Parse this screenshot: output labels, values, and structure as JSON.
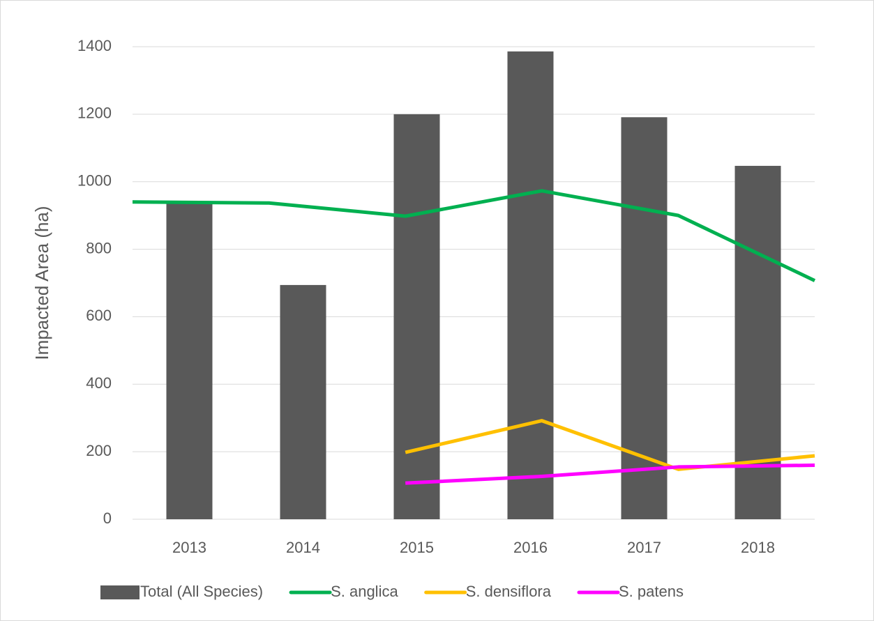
{
  "chart_data": {
    "type": "bar",
    "y_label": "Impacted Area (ha)",
    "categories": [
      "2013",
      "2014",
      "2015",
      "2016",
      "2017",
      "2018"
    ],
    "ylim": [
      0,
      1400
    ],
    "yticks": [
      0,
      200,
      400,
      600,
      800,
      1000,
      1200,
      1400
    ],
    "grid": true,
    "legend": "bottom",
    "series": [
      {
        "name": "Total (All Species)",
        "type": "bar",
        "color": "#595959",
        "values": [
          937,
          694,
          1200,
          1386,
          1191,
          1047
        ]
      },
      {
        "name": "S. anglica",
        "type": "line",
        "color": "#00b050",
        "values": [
          940,
          937,
          898,
          973,
          900,
          707
        ]
      },
      {
        "name": "S. densiflora",
        "type": "line",
        "color": "#ffc000",
        "values": [
          null,
          null,
          198,
          292,
          148,
          188
        ]
      },
      {
        "name": "S. patens",
        "type": "line",
        "color": "#ff00ff",
        "values": [
          null,
          null,
          107,
          127,
          155,
          160
        ]
      }
    ]
  }
}
